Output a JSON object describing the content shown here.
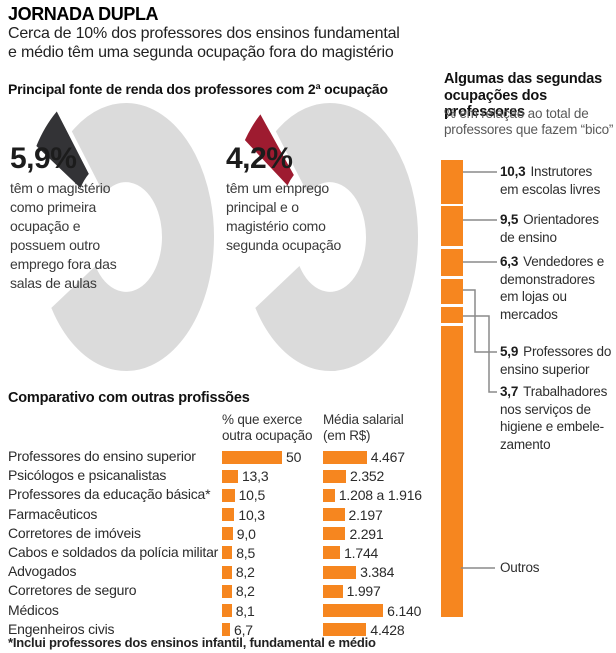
{
  "title": "JORNADA DUPLA",
  "subtitle": {
    "line1": "Cerca de 10% dos professores dos ensinos fundamental",
    "line2": "e médio têm uma segunda ocupação fora do magistério"
  },
  "colors": {
    "orange": "#F6861F",
    "ring_gray": "#DBDBDB",
    "slice_dark": "#333336",
    "slice_red": "#9E1B30",
    "connector": "#8a8a8a"
  },
  "income_section": {
    "header": "Principal fonte de renda dos professores com 2ª ocupação",
    "donut1": {
      "value_label": "5,9%",
      "value": 5.9,
      "lines": [
        "têm o magistério",
        "como primeira",
        "ocupação e",
        "possuem outro",
        "emprego fora das",
        "salas de aulas"
      ]
    },
    "donut2": {
      "value_label": "4,2%",
      "value": 4.2,
      "lines": [
        "têm um emprego",
        "principal e o",
        "magistério como",
        "segunda ocupação"
      ]
    }
  },
  "comparison": {
    "header": "Comparativo com outras profissões",
    "col1_header": [
      "% que exerce",
      "outra ocupação"
    ],
    "col2_header": [
      "Média salarial",
      "(em R$)"
    ],
    "rows": [
      {
        "label": "Professores do ensino superior",
        "pct": 50,
        "pct_label": "50",
        "salary": 4467,
        "salary_label": "4.467"
      },
      {
        "label": "Psicólogos e psicanalistas",
        "pct": 13.3,
        "pct_label": "13,3",
        "salary": 2352,
        "salary_label": "2.352"
      },
      {
        "label": "Professores da educação básica*",
        "pct": 10.5,
        "pct_label": "10,5",
        "salary": 1208,
        "salary_label": "1.208 a 1.916"
      },
      {
        "label": "Farmacêuticos",
        "pct": 10.3,
        "pct_label": "10,3",
        "salary": 2197,
        "salary_label": "2.197"
      },
      {
        "label": "Corretores de imóveis",
        "pct": 9.0,
        "pct_label": "9,0",
        "salary": 2291,
        "salary_label": "2.291"
      },
      {
        "label": "Cabos e soldados da polícia militar",
        "pct": 8.5,
        "pct_label": "8,5",
        "salary": 1744,
        "salary_label": "1.744"
      },
      {
        "label": "Advogados",
        "pct": 8.2,
        "pct_label": "8,2",
        "salary": 3384,
        "salary_label": "3.384"
      },
      {
        "label": "Corretores de seguro",
        "pct": 8.2,
        "pct_label": "8,2",
        "salary": 1997,
        "salary_label": "1.997"
      },
      {
        "label": "Médicos",
        "pct": 8.1,
        "pct_label": "8,1",
        "salary": 6140,
        "salary_label": "6.140"
      },
      {
        "label": "Engenheiros civis",
        "pct": 6.7,
        "pct_label": "6,7",
        "salary": 4428,
        "salary_label": "4.428"
      }
    ],
    "footnote": "*Inclui professores dos ensinos infantil, fundamental e médio"
  },
  "stacked": {
    "header_line1": "Algumas das segundas",
    "header_line2": "ocupações dos professores",
    "sub_line1": "% em relação ao total de",
    "sub_line2": "professores que fazem “bico”",
    "segments": [
      {
        "value": "10,3",
        "num": 10.3,
        "lines": [
          "Instrutores",
          "em escolas livres"
        ]
      },
      {
        "value": "9,5",
        "num": 9.5,
        "lines": [
          "Orientadores",
          "de ensino"
        ]
      },
      {
        "value": "6,3",
        "num": 6.3,
        "lines": [
          "Vendedores e",
          "demonstradores",
          "em lojas ou",
          "mercados"
        ]
      },
      {
        "value": "5,9",
        "num": 5.9,
        "lines": [
          "Professores do",
          "ensino superior"
        ]
      },
      {
        "value": "3,7",
        "num": 3.7,
        "lines": [
          "Trabalhadores",
          "nos serviços de",
          "higiene e embele-",
          "zamento"
        ]
      },
      {
        "value": "",
        "lines": [
          "Outros"
        ]
      }
    ]
  },
  "chart_data": [
    {
      "type": "pie",
      "title": "Principal fonte de renda dos professores com 2ª ocupação",
      "slices": [
        {
          "label": "têm o magistério como primeira ocupação e possuem outro emprego fora das salas de aulas",
          "value": 5.9,
          "color": "#333336"
        },
        {
          "label": "têm um emprego principal e o magistério como segunda ocupação",
          "value": 4.2,
          "color": "#9E1B30"
        }
      ],
      "note": "duas rosquinhas separadas; fatia destacada no topo, anel cinza"
    },
    {
      "type": "bar",
      "title": "Comparativo com outras profissões",
      "orientation": "horizontal",
      "categories": [
        "Professores do ensino superior",
        "Psicólogos e psicanalistas",
        "Professores da educação básica*",
        "Farmacêuticos",
        "Corretores de imóveis",
        "Cabos e soldados da polícia militar",
        "Advogados",
        "Corretores de seguro",
        "Médicos",
        "Engenheiros civis"
      ],
      "series": [
        {
          "name": "% que exerce outra ocupação",
          "values": [
            50,
            13.3,
            10.5,
            10.3,
            9.0,
            8.5,
            8.2,
            8.2,
            8.1,
            6.7
          ]
        },
        {
          "name": "Média salarial (em R$)",
          "values": [
            4467,
            2352,
            1208,
            2197,
            2291,
            1744,
            3384,
            1997,
            6140,
            4428
          ],
          "labels": [
            "4.467",
            "2.352",
            "1.208 a 1.916",
            "2.197",
            "2.291",
            "1.744",
            "3.384",
            "1.997",
            "6.140",
            "4.428"
          ]
        }
      ],
      "grid": false,
      "legend_position": "column headers"
    },
    {
      "type": "bar",
      "subtype": "stacked-column",
      "title": "Algumas das segundas ocupações dos professores",
      "ylabel": "% em relação ao total de professores que fazem “bico”",
      "categories": [
        "Instrutores em escolas livres",
        "Orientadores de ensino",
        "Vendedores e demonstradores em lojas ou mercados",
        "Professores do ensino superior",
        "Trabalhadores nos serviços de higiene e embelezamento",
        "Outros"
      ],
      "values": [
        10.3,
        9.5,
        6.3,
        5.9,
        3.7,
        64.3
      ],
      "color": "#F6861F"
    }
  ]
}
